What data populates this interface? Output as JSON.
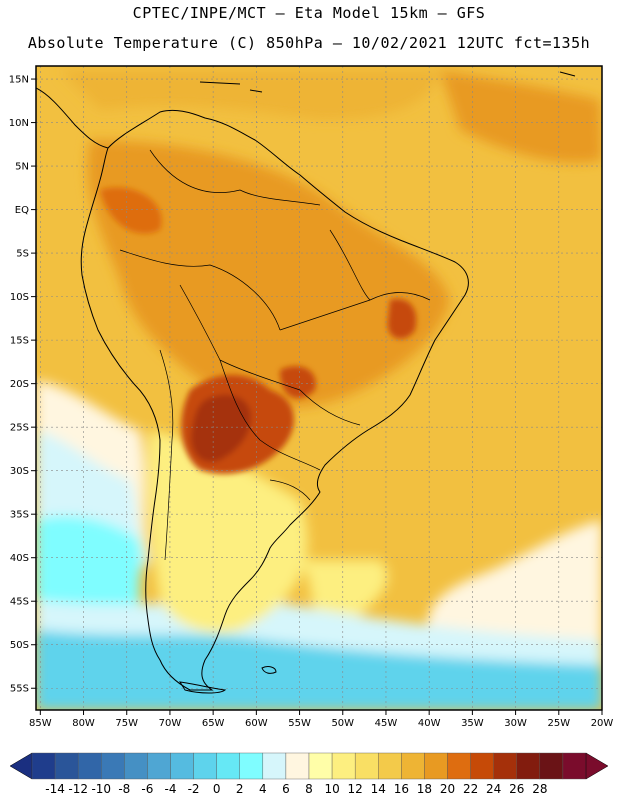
{
  "header": {
    "line1": "CPTEC/INPE/MCT –  Eta Model 15km – GFS",
    "line2": "Absolute Temperature (C) 850hPa – 10/02/2021 12UTC fct=135h"
  },
  "map": {
    "lon_range": [
      -85.5,
      -20
    ],
    "lat_range": [
      -57.5,
      16.5
    ],
    "lon_ticks": [
      {
        "value": -85,
        "label": "85W"
      },
      {
        "value": -80,
        "label": "80W"
      },
      {
        "value": -75,
        "label": "75W"
      },
      {
        "value": -70,
        "label": "70W"
      },
      {
        "value": -65,
        "label": "65W"
      },
      {
        "value": -60,
        "label": "60W"
      },
      {
        "value": -55,
        "label": "55W"
      },
      {
        "value": -50,
        "label": "50W"
      },
      {
        "value": -45,
        "label": "45W"
      },
      {
        "value": -40,
        "label": "40W"
      },
      {
        "value": -35,
        "label": "35W"
      },
      {
        "value": -30,
        "label": "30W"
      },
      {
        "value": -25,
        "label": "25W"
      },
      {
        "value": -20,
        "label": "20W"
      }
    ],
    "lat_ticks": [
      {
        "value": 15,
        "label": "15N"
      },
      {
        "value": 10,
        "label": "10N"
      },
      {
        "value": 5,
        "label": "5N"
      },
      {
        "value": 0,
        "label": "EQ"
      },
      {
        "value": -5,
        "label": "5S"
      },
      {
        "value": -10,
        "label": "10S"
      },
      {
        "value": -15,
        "label": "15S"
      },
      {
        "value": -20,
        "label": "20S"
      },
      {
        "value": -25,
        "label": "25S"
      },
      {
        "value": -30,
        "label": "30S"
      },
      {
        "value": -35,
        "label": "35S"
      },
      {
        "value": -40,
        "label": "40S"
      },
      {
        "value": -45,
        "label": "45S"
      },
      {
        "value": -50,
        "label": "50S"
      },
      {
        "value": -55,
        "label": "55S"
      }
    ],
    "background_temp_color": "#f2c040",
    "gridline_color": "#888888",
    "coast_color": "#000000"
  },
  "colorbar": {
    "labels": [
      "-14",
      "-12",
      "-10",
      "-8",
      "-6",
      "-4",
      "-2",
      "0",
      "2",
      "4",
      "6",
      "8",
      "10",
      "12",
      "14",
      "16",
      "18",
      "20",
      "22",
      "24",
      "26",
      "28"
    ],
    "colors": [
      "#1f3d8c",
      "#2a5599",
      "#3166a8",
      "#3a79b6",
      "#4590c4",
      "#4fa6d3",
      "#55bbe0",
      "#5ed3ec",
      "#66e8f5",
      "#7ffdff",
      "#d6f6fb",
      "#fff6e0",
      "#fffea8",
      "#fdef80",
      "#f9df64",
      "#f3ca4a",
      "#eeb434",
      "#e89a22",
      "#de6d10",
      "#c64a07",
      "#a5300a",
      "#821c0e",
      "#6a1316",
      "#7a0c2c"
    ],
    "left_cap_color": "#1a2f80",
    "right_cap_color": "#7a0c2c"
  },
  "temperature_field": [
    {
      "name": "zone-cold-south-ocean",
      "temp_c": 2,
      "color": "#5ed3ec"
    },
    {
      "name": "zone-cold-pacific",
      "temp_c": 4,
      "color": "#7ffdff"
    },
    {
      "name": "zone-cool-pacific",
      "temp_c": 6,
      "color": "#d6f6fb"
    },
    {
      "name": "zone-mild-atlantic",
      "temp_c": 8,
      "color": "#fff6e0"
    },
    {
      "name": "zone-patagonia",
      "temp_c": 12,
      "color": "#fdef80"
    },
    {
      "name": "zone-central",
      "temp_c": 18,
      "color": "#eeb434"
    },
    {
      "name": "zone-warm-amazon",
      "temp_c": 20,
      "color": "#e89a22"
    },
    {
      "name": "zone-hot-chaco",
      "temp_c": 24,
      "color": "#c64a07"
    },
    {
      "name": "zone-hot-core",
      "temp_c": 26,
      "color": "#a5300a"
    }
  ]
}
